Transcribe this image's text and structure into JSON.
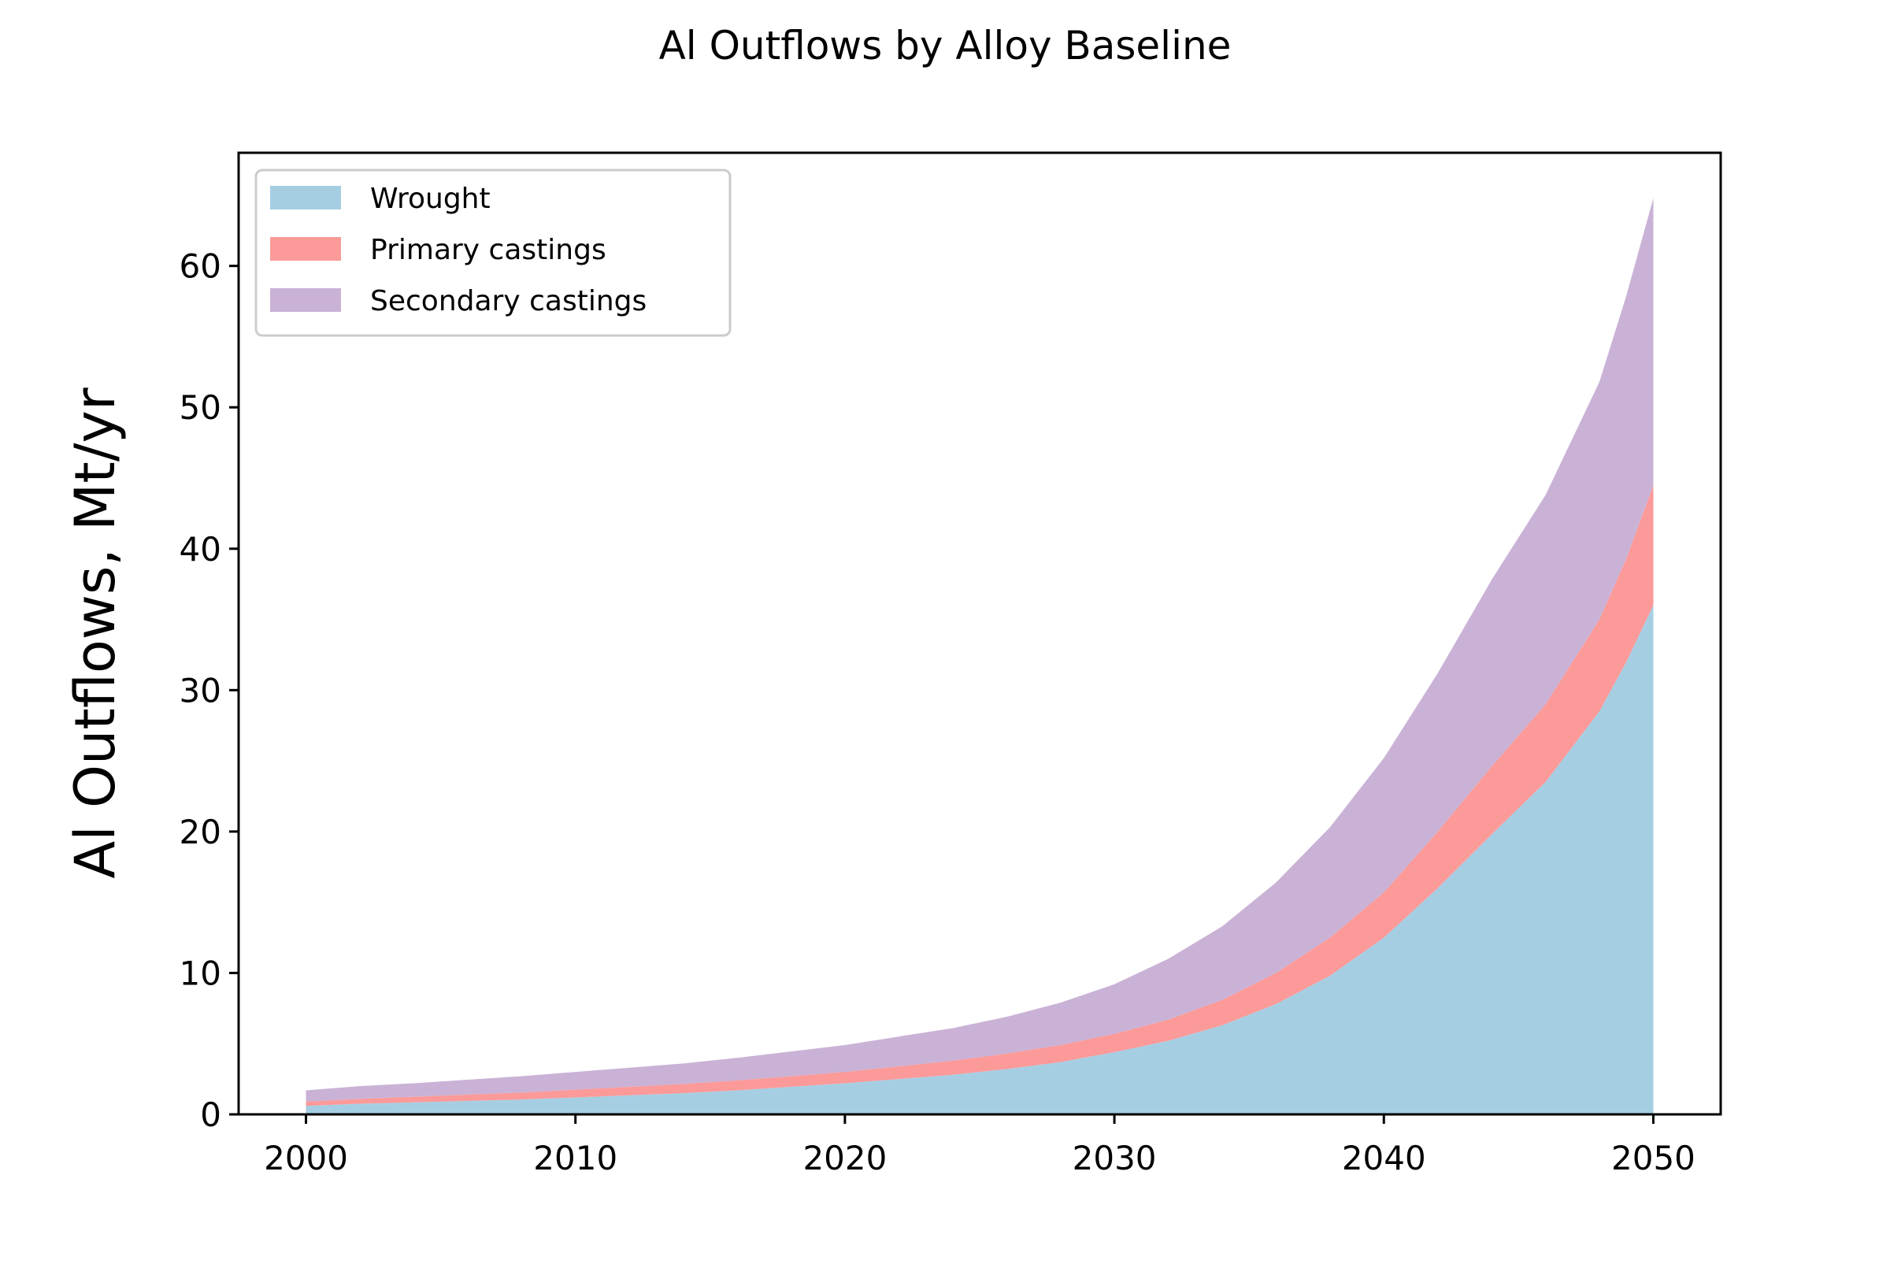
{
  "chart_data": {
    "type": "area",
    "stacked": true,
    "title": "Al Outflows by Alloy Baseline",
    "xlabel": "",
    "ylabel": "Al Outflows, Mt/yr",
    "xlim": [
      1997.5,
      2052.5
    ],
    "ylim": [
      0,
      68
    ],
    "xticks": [
      2000,
      2010,
      2020,
      2030,
      2040,
      2050
    ],
    "yticks": [
      0,
      10,
      20,
      30,
      40,
      50,
      60
    ],
    "grid": false,
    "legend_position": "top-left",
    "x": [
      2000,
      2002,
      2004,
      2006,
      2008,
      2010,
      2012,
      2014,
      2016,
      2018,
      2020,
      2022,
      2024,
      2026,
      2028,
      2030,
      2032,
      2034,
      2036,
      2038,
      2040,
      2042,
      2044,
      2046,
      2048,
      2049,
      2050
    ],
    "series": [
      {
        "name": "Wrought",
        "color": "#a6cee3",
        "values": [
          0.6,
          0.75,
          0.85,
          0.95,
          1.05,
          1.2,
          1.35,
          1.5,
          1.7,
          1.95,
          2.2,
          2.5,
          2.8,
          3.2,
          3.7,
          4.4,
          5.2,
          6.3,
          7.8,
          9.8,
          12.5,
          16.0,
          19.8,
          23.5,
          28.5,
          32.0,
          36.0
        ]
      },
      {
        "name": "Primary castings",
        "color": "#fb9a99",
        "values": [
          0.3,
          0.35,
          0.4,
          0.45,
          0.5,
          0.55,
          0.6,
          0.65,
          0.7,
          0.75,
          0.8,
          0.9,
          1.0,
          1.1,
          1.2,
          1.3,
          1.5,
          1.8,
          2.2,
          2.7,
          3.2,
          4.0,
          4.8,
          5.5,
          6.5,
          7.3,
          8.5
        ]
      },
      {
        "name": "Secondary castings",
        "color": "#cab2d6",
        "values": [
          0.8,
          0.9,
          0.95,
          1.05,
          1.15,
          1.25,
          1.35,
          1.45,
          1.6,
          1.75,
          1.9,
          2.1,
          2.3,
          2.6,
          3.0,
          3.5,
          4.3,
          5.2,
          6.4,
          7.8,
          9.5,
          11.2,
          13.2,
          14.8,
          16.8,
          18.6,
          20.3
        ]
      }
    ]
  }
}
